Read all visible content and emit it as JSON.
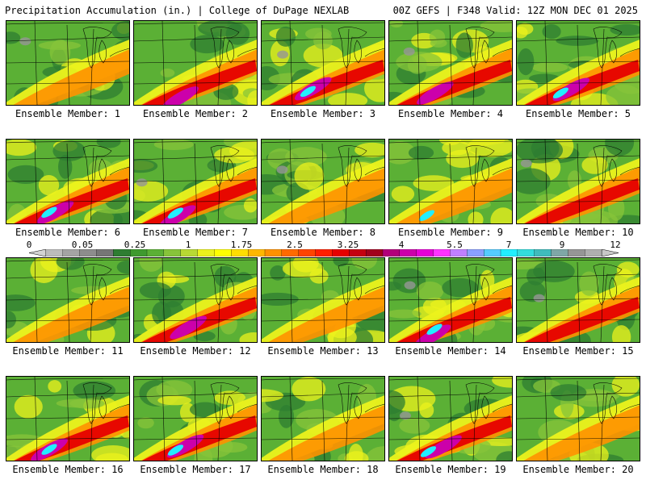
{
  "header": {
    "title": "Precipitation Accumulation (in.) | College of DuPage NEXLAB",
    "run_info": "00Z GEFS | F348 Valid: 12Z MON DEC 01 2025"
  },
  "members": [
    {
      "label": "Ensemble Member: 1"
    },
    {
      "label": "Ensemble Member: 2"
    },
    {
      "label": "Ensemble Member: 3"
    },
    {
      "label": "Ensemble Member: 4"
    },
    {
      "label": "Ensemble Member: 5"
    },
    {
      "label": "Ensemble Member: 6"
    },
    {
      "label": "Ensemble Member: 7"
    },
    {
      "label": "Ensemble Member: 8"
    },
    {
      "label": "Ensemble Member: 9"
    },
    {
      "label": "Ensemble Member: 10"
    },
    {
      "label": "Ensemble Member: 11"
    },
    {
      "label": "Ensemble Member: 12"
    },
    {
      "label": "Ensemble Member: 13"
    },
    {
      "label": "Ensemble Member: 14"
    },
    {
      "label": "Ensemble Member: 15"
    },
    {
      "label": "Ensemble Member: 16"
    },
    {
      "label": "Ensemble Member: 17"
    },
    {
      "label": "Ensemble Member: 18"
    },
    {
      "label": "Ensemble Member: 19"
    },
    {
      "label": "Ensemble Member: 20"
    }
  ],
  "colorbar": {
    "tick_labels": [
      "0",
      "0.05",
      "0.25",
      "1",
      "1.75",
      "2.5",
      "3.25",
      "4",
      "5.5",
      "7",
      "9",
      "12"
    ],
    "colors": [
      "#d3d3d3",
      "#bcbcbc",
      "#a4a4a4",
      "#8d8d8d",
      "#767676",
      "#2e7d32",
      "#3f9a2f",
      "#5bb035",
      "#87c43a",
      "#b8d934",
      "#ecf21c",
      "#ffff00",
      "#ffdd00",
      "#ffb700",
      "#ff9100",
      "#ff6a00",
      "#ff4400",
      "#ff1e00",
      "#e60000",
      "#c40010",
      "#a1001c",
      "#b2007a",
      "#cc00aa",
      "#e600d6",
      "#ff33ff",
      "#c080ff",
      "#8aa0ff",
      "#55ccff",
      "#22eeff",
      "#33dddd",
      "#40bcbc",
      "#7fa7a7",
      "#969696",
      "#afafaf",
      "#c8c8c8"
    ]
  },
  "palette": {
    "green_dark": "#2e7d32",
    "green": "#5bb035",
    "green_light": "#87c43a",
    "yellow": "#ecf21c",
    "orange": "#ff9100",
    "red": "#e60000",
    "magenta": "#cc00aa",
    "cyan": "#22eeff",
    "gray": "#969696"
  }
}
